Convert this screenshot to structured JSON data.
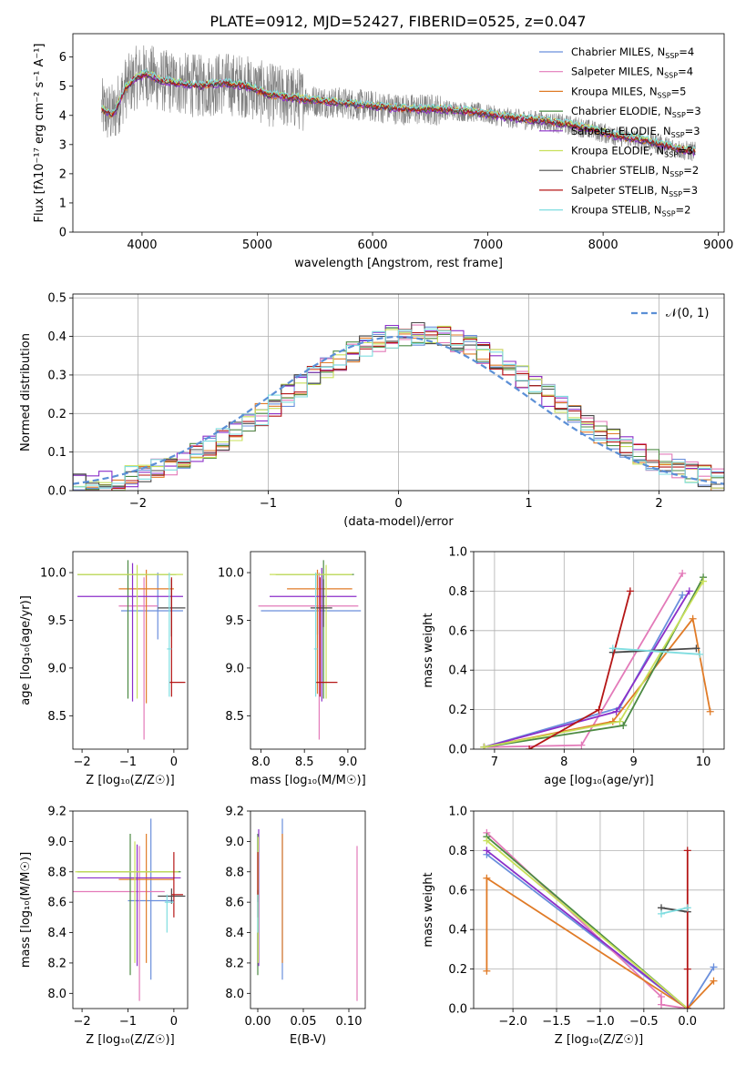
{
  "figure": {
    "title": "PLATE=0912, MJD=52427, FIBERID=0525, z=0.047"
  },
  "colors": {
    "Chabrier MILES": "#6a8fdc",
    "Salpeter MILES": "#e37ab9",
    "Kroupa MILES": "#e07b27",
    "Chabrier ELODIE": "#4c8a43",
    "Salpeter ELODIE": "#8b2fc9",
    "Kroupa ELODIE": "#c8e05a",
    "Chabrier STELIB": "#4a4a4a",
    "Salpeter STELIB": "#b51616",
    "Kroupa STELIB": "#7fdde0",
    "data": "#808080"
  },
  "chart_data": [
    {
      "id": "spectrum",
      "type": "line",
      "xlabel": "wavelength [Angstrom, rest frame]",
      "ylabel": "Flux [fλ10⁻¹⁷ erg cm⁻² s⁻¹ A⁻¹]",
      "xlim": [
        3400,
        9050
      ],
      "ylim": [
        0,
        6.8
      ],
      "xticks": [
        4000,
        5000,
        6000,
        7000,
        8000,
        9000
      ],
      "yticks": [
        0,
        1,
        2,
        3,
        4,
        5,
        6
      ],
      "legend_position": "top-right",
      "legend": [
        {
          "name": "Chabrier MILES",
          "nssp": "4"
        },
        {
          "name": "Salpeter MILES",
          "nssp": "4"
        },
        {
          "name": "Kroupa MILES",
          "nssp": "5"
        },
        {
          "name": "Chabrier ELODIE",
          "nssp": "3"
        },
        {
          "name": "Salpeter ELODIE",
          "nssp": "3"
        },
        {
          "name": "Kroupa ELODIE",
          "nssp": "3"
        },
        {
          "name": "Chabrier STELIB",
          "nssp": "2"
        },
        {
          "name": "Salpeter STELIB",
          "nssp": "3"
        },
        {
          "name": "Kroupa STELIB",
          "nssp": "2"
        }
      ],
      "model_curve": {
        "x": [
          3650,
          3750,
          3850,
          3950,
          4050,
          4150,
          4300,
          4500,
          4700,
          4900,
          5100,
          5300,
          5500,
          5800,
          6000,
          6300,
          6600,
          6900,
          7200,
          7500,
          7800,
          8100,
          8400,
          8700,
          8800
        ],
        "y": [
          4.2,
          4.0,
          4.9,
          5.3,
          5.4,
          5.2,
          5.1,
          5.0,
          5.1,
          5.0,
          4.7,
          4.6,
          4.5,
          4.4,
          4.3,
          4.2,
          4.2,
          4.1,
          3.9,
          3.8,
          3.6,
          3.3,
          3.1,
          2.8,
          2.75
        ]
      },
      "model_offsets": [
        0.0,
        0.05,
        -0.03,
        0.04,
        -0.05,
        0.08,
        -0.02,
        0.03,
        0.1
      ]
    },
    {
      "id": "residuals",
      "type": "line",
      "xlabel": "(data-model)/error",
      "ylabel": "Normed distribution",
      "xlim": [
        -2.5,
        2.5
      ],
      "ylim": [
        0,
        0.51
      ],
      "xticks": [
        -2,
        -1,
        0,
        1,
        2
      ],
      "yticks": [
        0.0,
        0.1,
        0.2,
        0.3,
        0.4,
        0.5
      ],
      "grid": true,
      "legend_position": "top-right",
      "legend_label": "𝒩(0, 1)",
      "bin_width": 0.1
    },
    {
      "id": "age-vs-Z",
      "type": "scatter",
      "xlabel": "Z [log₁₀(Z/Z☉)]",
      "ylabel": "age  [log₁₀(age/yr)]",
      "xlim": [
        -2.2,
        0.3
      ],
      "ylim": [
        8.15,
        10.22
      ],
      "xticks": [
        -2,
        -1,
        0
      ],
      "yticks": [
        8.5,
        9.0,
        9.5,
        10.0
      ],
      "crosses": [
        {
          "m": 0,
          "x": -0.35,
          "y": 9.6,
          "xerr": [
            0.8,
            0.55
          ],
          "yerr": [
            0.3,
            0.4
          ]
        },
        {
          "m": 1,
          "x": -0.65,
          "y": 9.65,
          "xerr": [
            0.55,
            0.3
          ],
          "yerr": [
            1.4,
            0.3
          ]
        },
        {
          "m": 2,
          "x": -0.6,
          "y": 9.83,
          "xerr": [
            0.6,
            0.6
          ],
          "yerr": [
            1.2,
            0.2
          ]
        },
        {
          "m": 3,
          "x": -1.0,
          "y": 9.98,
          "xerr": [
            1.1,
            1.05
          ],
          "yerr": [
            1.3,
            0.15
          ]
        },
        {
          "m": 4,
          "x": -0.9,
          "y": 9.75,
          "xerr": [
            1.2,
            1.1
          ],
          "yerr": [
            1.1,
            0.35
          ]
        },
        {
          "m": 5,
          "x": -0.8,
          "y": 9.98,
          "xerr": [
            1.3,
            1.0
          ],
          "yerr": [
            1.3,
            0.1
          ]
        },
        {
          "m": 6,
          "x": -0.05,
          "y": 9.63,
          "xerr": [
            0.3,
            0.3
          ],
          "yerr": [
            0.3,
            0.3
          ]
        },
        {
          "m": 7,
          "x": -0.05,
          "y": 8.85,
          "xerr": [
            0.05,
            0.3
          ],
          "yerr": [
            0.15,
            1.1
          ]
        },
        {
          "m": 8,
          "x": -0.1,
          "y": 9.2,
          "xerr": [
            0.05,
            0.05
          ],
          "yerr": [
            0.5,
            0.8
          ]
        }
      ]
    },
    {
      "id": "age-vs-mass",
      "type": "scatter",
      "xlabel": "mass [log₁₀(M/M☉)]",
      "ylabel": "",
      "xlim": [
        7.88,
        9.2
      ],
      "ylim": [
        8.15,
        10.22
      ],
      "xticks": [
        8.0,
        8.5,
        9.0
      ],
      "yticks": [
        8.5,
        9.0,
        9.5,
        10.0
      ],
      "crosses": [
        {
          "m": 0,
          "x": 8.65,
          "y": 9.6,
          "xerr": [
            0.65,
            0.5
          ],
          "yerr": [
            0.25,
            0.4
          ]
        },
        {
          "m": 1,
          "x": 8.67,
          "y": 9.65,
          "xerr": [
            0.7,
            0.45
          ],
          "yerr": [
            1.4,
            0.35
          ]
        },
        {
          "m": 2,
          "x": 8.65,
          "y": 9.83,
          "xerr": [
            0.35,
            0.4
          ],
          "yerr": [
            1.1,
            0.2
          ]
        },
        {
          "m": 3,
          "x": 8.72,
          "y": 9.98,
          "xerr": [
            0.55,
            0.35
          ],
          "yerr": [
            1.3,
            0.15
          ]
        },
        {
          "m": 4,
          "x": 8.7,
          "y": 9.75,
          "xerr": [
            0.6,
            0.4
          ],
          "yerr": [
            1.1,
            0.3
          ]
        },
        {
          "m": 5,
          "x": 8.75,
          "y": 9.98,
          "xerr": [
            0.65,
            0.3
          ],
          "yerr": [
            1.3,
            0.1
          ]
        },
        {
          "m": 6,
          "x": 8.72,
          "y": 9.63,
          "xerr": [
            0.15,
            0.1
          ],
          "yerr": [
            0.2,
            0.3
          ]
        },
        {
          "m": 7,
          "x": 8.68,
          "y": 8.85,
          "xerr": [
            0.05,
            0.2
          ],
          "yerr": [
            0.15,
            1.1
          ]
        },
        {
          "m": 8,
          "x": 8.63,
          "y": 9.2,
          "xerr": [
            0.02,
            0.02
          ],
          "yerr": [
            0.5,
            0.8
          ]
        }
      ]
    },
    {
      "id": "weight-vs-age",
      "type": "line",
      "xlabel": "age  [log₁₀(age/yr)]",
      "ylabel": "mass weight",
      "xlim": [
        6.7,
        10.3
      ],
      "ylim": [
        0,
        1.0
      ],
      "xticks": [
        7,
        8,
        9,
        10
      ],
      "yticks": [
        0.0,
        0.2,
        0.4,
        0.6,
        0.8,
        1.0
      ],
      "grid": true,
      "series": [
        {
          "m": 0,
          "x": [
            6.85,
            8.8,
            9.7
          ],
          "y": [
            0.01,
            0.21,
            0.78
          ]
        },
        {
          "m": 1,
          "x": [
            6.85,
            8.25,
            9.7
          ],
          "y": [
            0.01,
            0.02,
            0.89
          ]
        },
        {
          "m": 2,
          "x": [
            6.85,
            8.7,
            9.85,
            10.1
          ],
          "y": [
            0.01,
            0.14,
            0.66,
            0.19
          ]
        },
        {
          "m": 3,
          "x": [
            6.85,
            8.85,
            10.0
          ],
          "y": [
            0.01,
            0.12,
            0.87
          ]
        },
        {
          "m": 4,
          "x": [
            6.85,
            8.75,
            9.8
          ],
          "y": [
            0.01,
            0.19,
            0.8
          ]
        },
        {
          "m": 5,
          "x": [
            6.85,
            8.8,
            10.0
          ],
          "y": [
            0.01,
            0.14,
            0.85
          ]
        },
        {
          "m": 6,
          "x": [
            8.7,
            9.9
          ],
          "y": [
            0.49,
            0.51
          ]
        },
        {
          "m": 7,
          "x": [
            7.5,
            8.5,
            8.95
          ],
          "y": [
            0.0,
            0.2,
            0.8
          ]
        },
        {
          "m": 8,
          "x": [
            8.7,
            9.95
          ],
          "y": [
            0.51,
            0.48
          ]
        }
      ]
    },
    {
      "id": "mass-vs-Z",
      "type": "scatter",
      "xlabel": "Z [log₁₀(Z/Z☉)]",
      "ylabel": "mass [log₁₀(M/M☉)]",
      "xlim": [
        -2.2,
        0.3
      ],
      "ylim": [
        7.9,
        9.2
      ],
      "xticks": [
        -2,
        -1,
        0
      ],
      "yticks": [
        8.0,
        8.2,
        8.4,
        8.6,
        8.8,
        9.0,
        9.2
      ],
      "crosses": [
        {
          "m": 0,
          "x": -0.5,
          "y": 8.61,
          "xerr": [
            0.5,
            0.5
          ],
          "yerr": [
            0.52,
            0.54
          ]
        },
        {
          "m": 1,
          "x": -0.75,
          "y": 8.67,
          "xerr": [
            1.6,
            0.55
          ],
          "yerr": [
            0.72,
            0.3
          ]
        },
        {
          "m": 2,
          "x": -0.6,
          "y": 8.75,
          "xerr": [
            0.6,
            0.6
          ],
          "yerr": [
            0.55,
            0.3
          ]
        },
        {
          "m": 3,
          "x": -0.95,
          "y": 8.8,
          "xerr": [
            1.15,
            1.1
          ],
          "yerr": [
            0.68,
            0.25
          ]
        },
        {
          "m": 4,
          "x": -0.8,
          "y": 8.76,
          "xerr": [
            1.3,
            0.95
          ],
          "yerr": [
            0.58,
            0.22
          ]
        },
        {
          "m": 5,
          "x": -0.85,
          "y": 8.8,
          "xerr": [
            1.3,
            0.95
          ],
          "yerr": [
            0.6,
            0.2
          ]
        },
        {
          "m": 6,
          "x": -0.05,
          "y": 8.64,
          "xerr": [
            0.3,
            0.3
          ],
          "yerr": [
            0.05,
            0.05
          ]
        },
        {
          "m": 7,
          "x": 0.0,
          "y": 8.65,
          "xerr": [
            0.05,
            0.2
          ],
          "yerr": [
            0.15,
            0.28
          ]
        },
        {
          "m": 8,
          "x": -0.15,
          "y": 8.6,
          "xerr": [
            0.05,
            0.15
          ],
          "yerr": [
            0.2,
            0.05
          ]
        }
      ]
    },
    {
      "id": "mass-vs-ebv",
      "type": "scatter",
      "xlabel": "E(B-V)",
      "ylabel": "",
      "xlim": [
        -0.008,
        0.118
      ],
      "ylim": [
        7.9,
        9.2
      ],
      "xticks": [
        0.0,
        0.05,
        0.1
      ],
      "yticks": [
        8.0,
        8.2,
        8.4,
        8.6,
        8.8,
        9.0,
        9.2
      ],
      "vbars": [
        {
          "m": 0,
          "x": 0.027,
          "ymin": 8.09,
          "ymax": 9.15
        },
        {
          "m": 1,
          "x": 0.109,
          "ymin": 7.95,
          "ymax": 8.97
        },
        {
          "m": 2,
          "x": 0.027,
          "ymin": 8.2,
          "ymax": 9.05
        },
        {
          "m": 3,
          "x": 0.0,
          "ymin": 8.12,
          "ymax": 9.05
        },
        {
          "m": 4,
          "x": 0.001,
          "ymin": 8.18,
          "ymax": 9.08
        },
        {
          "m": 5,
          "x": 0.0005,
          "ymin": 8.2,
          "ymax": 9.03
        },
        {
          "m": 6,
          "x": 0.0,
          "ymin": 8.6,
          "ymax": 8.68
        },
        {
          "m": 7,
          "x": 0.0,
          "ymin": 8.5,
          "ymax": 8.93
        },
        {
          "m": 8,
          "x": 0.0,
          "ymin": 8.4,
          "ymax": 8.65
        }
      ]
    },
    {
      "id": "weight-vs-Z",
      "type": "line",
      "xlabel": "Z [log₁₀(Z/Z☉)]",
      "ylabel": "mass weight",
      "xlim": [
        -2.45,
        0.42
      ],
      "ylim": [
        0,
        1.0
      ],
      "xticks": [
        -2.0,
        -1.5,
        -1.0,
        -0.5,
        0.0
      ],
      "yticks": [
        0.0,
        0.2,
        0.4,
        0.6,
        0.8,
        1.0
      ],
      "grid": true,
      "series": [
        {
          "m": 0,
          "x": [
            -2.3,
            0.0,
            0.3
          ],
          "y": [
            0.78,
            0.0,
            0.21
          ]
        },
        {
          "m": 1,
          "x": [
            -2.3,
            -0.3,
            -0.3,
            0.0
          ],
          "y": [
            0.89,
            0.06,
            0.02,
            0.0
          ]
        },
        {
          "m": 2,
          "x": [
            -2.3,
            -2.3,
            0.0,
            0.3
          ],
          "y": [
            0.19,
            0.66,
            0.0,
            0.14
          ]
        },
        {
          "m": 3,
          "x": [
            -2.3,
            0.0
          ],
          "y": [
            0.87,
            0.0
          ]
        },
        {
          "m": 4,
          "x": [
            -2.3,
            0.0
          ],
          "y": [
            0.8,
            0.0
          ]
        },
        {
          "m": 5,
          "x": [
            -2.3,
            0.0
          ],
          "y": [
            0.85,
            0.0
          ]
        },
        {
          "m": 6,
          "x": [
            -0.3,
            0.0
          ],
          "y": [
            0.51,
            0.49
          ]
        },
        {
          "m": 7,
          "x": [
            0.0,
            0.0,
            0.0
          ],
          "y": [
            0.8,
            0.2,
            0.0
          ]
        },
        {
          "m": 8,
          "x": [
            -0.3,
            0.0
          ],
          "y": [
            0.48,
            0.51
          ]
        }
      ]
    }
  ]
}
